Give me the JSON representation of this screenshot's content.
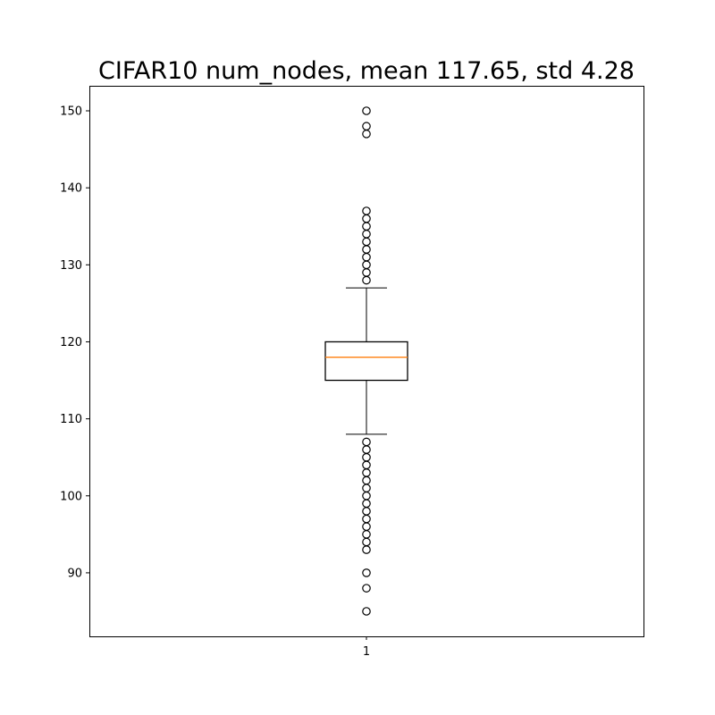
{
  "chart_data": {
    "type": "box",
    "title": "CIFAR10 num_nodes, mean 117.65, std 4.28",
    "xlabel": "",
    "ylabel": "",
    "categories": [
      "1"
    ],
    "ylim": [
      81.75,
      153.25
    ],
    "yticks": [
      90,
      100,
      110,
      120,
      130,
      140,
      150
    ],
    "grid": false,
    "colors": {
      "box": "#000000",
      "median": "#ff7f0e",
      "whisker": "#000000",
      "flier": "#000000"
    },
    "boxes": [
      {
        "name": "1",
        "whisker_low": 108,
        "q1": 115,
        "median": 118,
        "q3": 120,
        "whisker_high": 127,
        "fliers": [
          85,
          88,
          90,
          93,
          94,
          95,
          96,
          97,
          98,
          99,
          100,
          101,
          102,
          103,
          104,
          105,
          106,
          107,
          128,
          129,
          130,
          131,
          132,
          133,
          134,
          135,
          136,
          137,
          147,
          148,
          150
        ]
      }
    ]
  }
}
